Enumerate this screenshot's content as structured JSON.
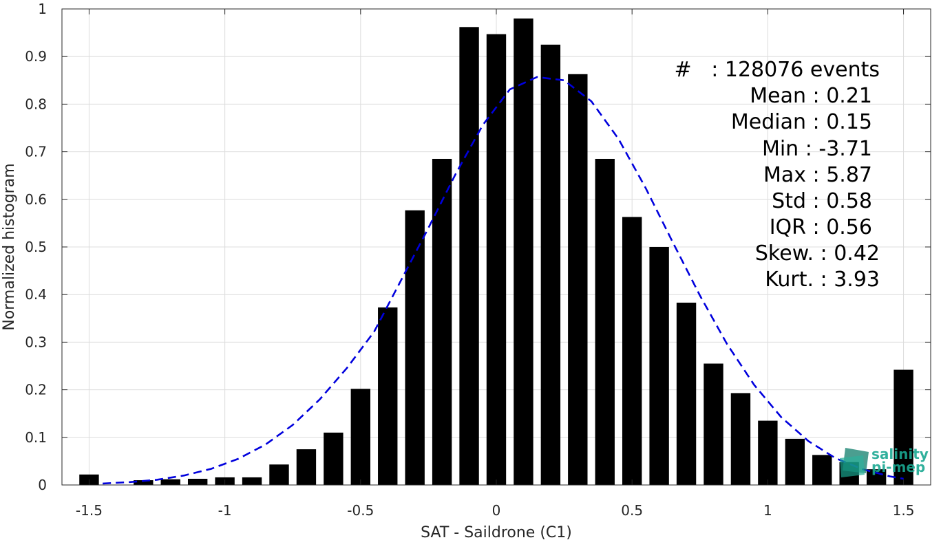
{
  "chart_data": {
    "type": "bar",
    "xlabel": "SAT - Saildrone (C1)",
    "ylabel": "Normalized histogram",
    "xlim": [
      -1.6,
      1.6
    ],
    "ylim": [
      0,
      1
    ],
    "xticks": [
      -1.5,
      -1,
      -0.5,
      0,
      0.5,
      1,
      1.5
    ],
    "xtick_labels": [
      "-1.5",
      "-1",
      "-0.5",
      "0",
      "0.5",
      "1",
      "1.5"
    ],
    "yticks": [
      0,
      0.1,
      0.2,
      0.3,
      0.4,
      0.5,
      0.6,
      0.7,
      0.8,
      0.9,
      1
    ],
    "ytick_labels": [
      "0",
      "0.1",
      "0.2",
      "0.3",
      "0.4",
      "0.5",
      "0.6",
      "0.7",
      "0.8",
      "0.9",
      "1"
    ],
    "grid": true,
    "x": [
      -1.5,
      -1.4,
      -1.3,
      -1.2,
      -1.1,
      -1.0,
      -0.9,
      -0.8,
      -0.7,
      -0.6,
      -0.5,
      -0.4,
      -0.3,
      -0.2,
      -0.1,
      0.0,
      0.1,
      0.2,
      0.3,
      0.4,
      0.5,
      0.6,
      0.7,
      0.8,
      0.9,
      1.0,
      1.1,
      1.2,
      1.3,
      1.4,
      1.5
    ],
    "values": [
      0.022,
      0.0,
      0.01,
      0.012,
      0.013,
      0.016,
      0.016,
      0.043,
      0.075,
      0.11,
      0.202,
      0.373,
      0.577,
      0.685,
      0.962,
      0.947,
      0.98,
      0.925,
      0.863,
      0.685,
      0.563,
      0.5,
      0.383,
      0.255,
      0.193,
      0.135,
      0.097,
      0.063,
      0.048,
      0.033,
      0.242
    ],
    "bar_color": "#000000",
    "fit_curve": {
      "style": "dashed",
      "color": "#0000dd",
      "x": [
        -1.45,
        -1.35,
        -1.25,
        -1.15,
        -1.05,
        -0.95,
        -0.85,
        -0.75,
        -0.65,
        -0.55,
        -0.45,
        -0.35,
        -0.25,
        -0.15,
        -0.05,
        0.05,
        0.15,
        0.25,
        0.35,
        0.45,
        0.55,
        0.65,
        0.75,
        0.85,
        0.95,
        1.05,
        1.15,
        1.25,
        1.35,
        1.45,
        1.5
      ],
      "y": [
        0.003,
        0.006,
        0.011,
        0.02,
        0.034,
        0.055,
        0.085,
        0.126,
        0.18,
        0.246,
        0.322,
        0.431,
        0.54,
        0.653,
        0.756,
        0.831,
        0.857,
        0.85,
        0.806,
        0.727,
        0.624,
        0.51,
        0.398,
        0.296,
        0.21,
        0.142,
        0.092,
        0.056,
        0.033,
        0.018,
        0.013
      ]
    }
  },
  "stats": {
    "events": "#   : 128076 events",
    "mean": "Mean : 0.21",
    "median": "Median : 0.15",
    "min": "Min : -3.71",
    "max": "Max : 5.87",
    "std": "Std : 0.58",
    "iqr": "IQR : 0.56",
    "skew": "Skew. : 0.42",
    "kurt": "Kurt. : 3.93"
  },
  "logo": {
    "line1": "salinity",
    "line2": "pi-mep",
    "color": "#1aa892"
  }
}
